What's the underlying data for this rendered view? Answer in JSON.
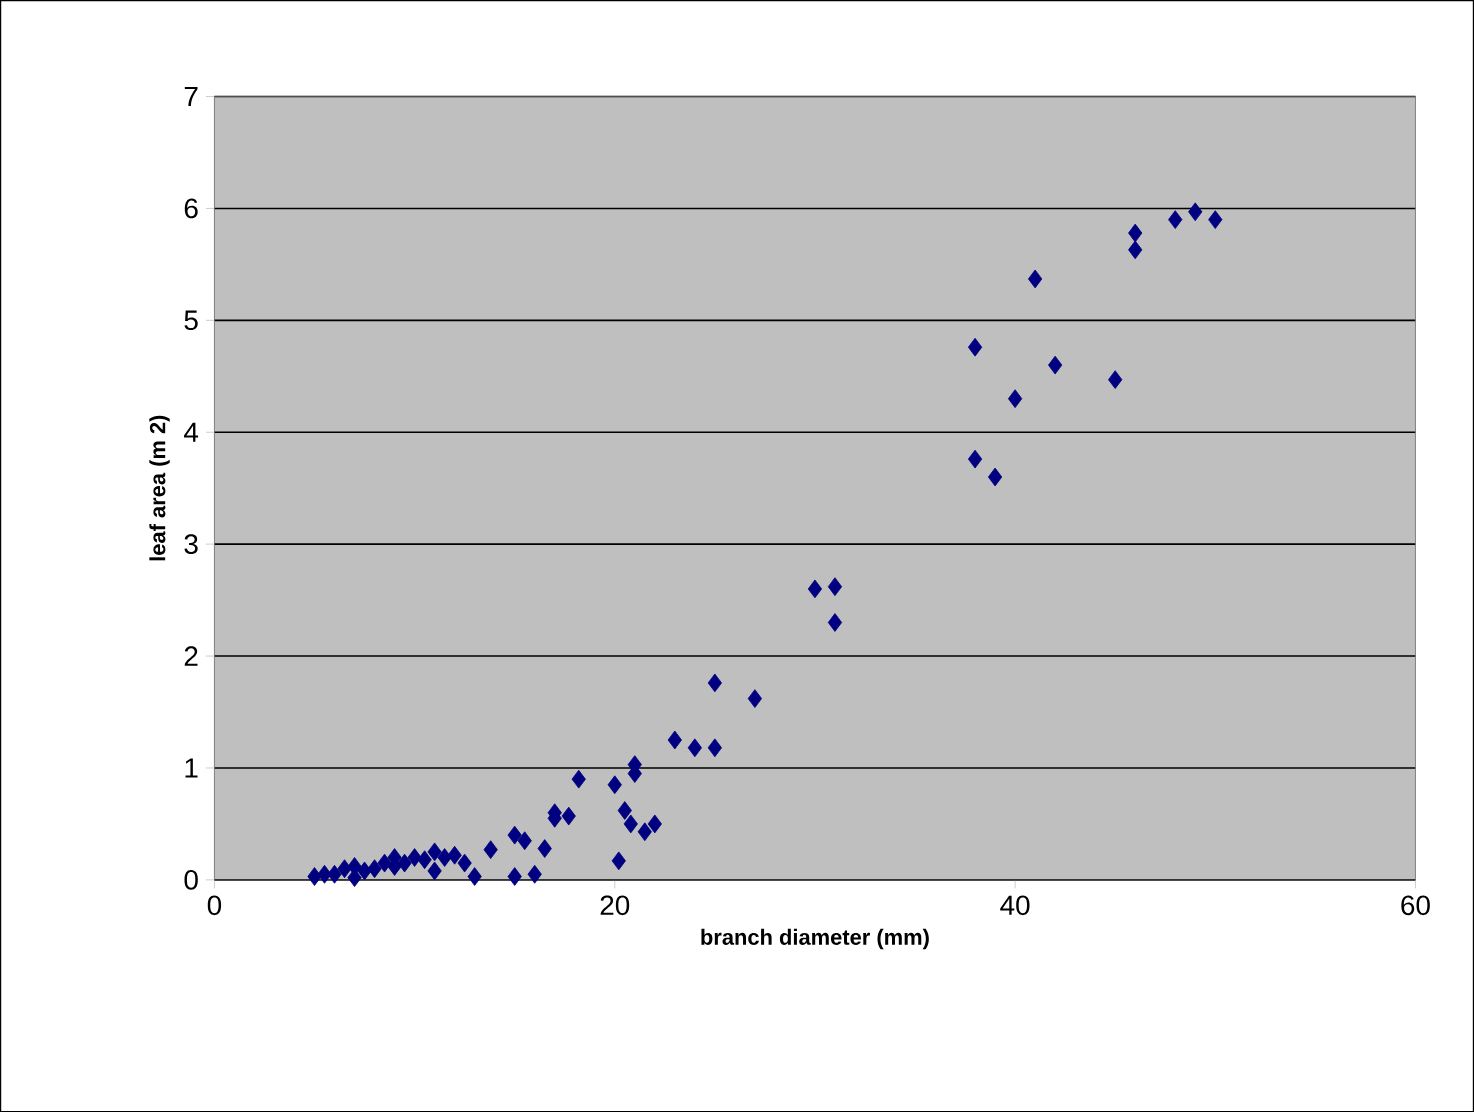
{
  "chart_data": {
    "type": "scatter",
    "xlabel": "branch diameter (mm)",
    "ylabel": "leaf area (m 2)",
    "xlim": [
      0,
      60
    ],
    "xticks": [
      0,
      20,
      40,
      60
    ],
    "ylim": [
      0,
      7
    ],
    "yticks": [
      0,
      1,
      2,
      3,
      4,
      5,
      6,
      7
    ],
    "grid": "y",
    "marker": "diamond",
    "series": [
      {
        "color": "#000080",
        "x": [
          5,
          5.5,
          6,
          6.5,
          7,
          7,
          7.5,
          8,
          8.5,
          9,
          9,
          9.5,
          10,
          10.5,
          11,
          11,
          11.5,
          12,
          12.5,
          13,
          13.8,
          15,
          15,
          15.5,
          16,
          16.5,
          17,
          17,
          17.7,
          18.2,
          20,
          20.2,
          20.5,
          20.8,
          21,
          21,
          21.5,
          22,
          23,
          24,
          25,
          25,
          27,
          30,
          31,
          31,
          38,
          38,
          39,
          40,
          41,
          42,
          45,
          46,
          46,
          48,
          49,
          50
        ],
        "values": [
          0.03,
          0.05,
          0.05,
          0.1,
          0.02,
          0.12,
          0.08,
          0.1,
          0.15,
          0.2,
          0.12,
          0.15,
          0.2,
          0.18,
          0.25,
          0.08,
          0.2,
          0.22,
          0.15,
          0.03,
          0.27,
          0.4,
          0.03,
          0.35,
          0.05,
          0.28,
          0.55,
          0.6,
          0.57,
          0.9,
          0.85,
          0.17,
          0.62,
          0.5,
          0.95,
          1.03,
          0.43,
          0.5,
          1.25,
          1.18,
          1.18,
          1.76,
          1.62,
          2.6,
          2.62,
          2.3,
          3.76,
          4.76,
          3.6,
          4.3,
          5.37,
          4.6,
          4.47,
          5.78,
          5.63,
          5.9,
          5.97,
          5.9
        ]
      }
    ]
  }
}
